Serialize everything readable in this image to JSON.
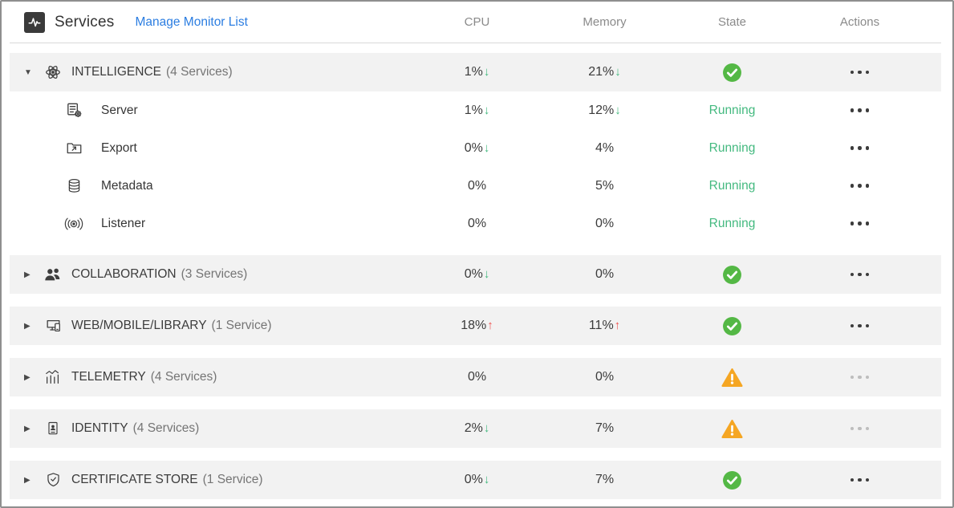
{
  "header": {
    "app_icon": "activity-pulse-icon",
    "title": "Services",
    "manage_link": "Manage Monitor List",
    "columns": [
      "CPU",
      "Memory",
      "State",
      "Actions"
    ]
  },
  "colors": {
    "status_ok_green": "#54b845",
    "trend_down_green": "#43b97f",
    "trend_up_red": "#ef5350",
    "warning_orange": "#f5a623",
    "link_blue": "#2b7de1",
    "group_row_bg": "#f2f2f2"
  },
  "state_labels": {
    "running": "Running"
  },
  "table": {
    "rows": [
      {
        "type": "group",
        "expanded": true,
        "icon": "atom-icon",
        "name": "INTELLIGENCE",
        "count_label": "(4 Services)",
        "cpu": "1%",
        "cpu_trend": "down",
        "memory": "21%",
        "memory_trend": "down",
        "state": "ok",
        "actions_enabled": true
      },
      {
        "type": "service",
        "icon": "server-gear-icon",
        "name": "Server",
        "cpu": "1%",
        "cpu_trend": "down",
        "memory": "12%",
        "memory_trend": "down",
        "state": "running",
        "actions_enabled": true
      },
      {
        "type": "service",
        "icon": "export-folder-icon",
        "name": "Export",
        "cpu": "0%",
        "cpu_trend": "down",
        "memory": "4%",
        "memory_trend": "none",
        "state": "running",
        "actions_enabled": true
      },
      {
        "type": "service",
        "icon": "database-icon",
        "name": "Metadata",
        "cpu": "0%",
        "cpu_trend": "none",
        "memory": "5%",
        "memory_trend": "none",
        "state": "running",
        "actions_enabled": true
      },
      {
        "type": "service",
        "icon": "listener-broadcast-icon",
        "name": "Listener",
        "cpu": "0%",
        "cpu_trend": "none",
        "memory": "0%",
        "memory_trend": "none",
        "state": "running",
        "actions_enabled": true
      },
      {
        "type": "group",
        "expanded": false,
        "icon": "people-icon",
        "name": "COLLABORATION",
        "count_label": "(3 Services)",
        "cpu": "0%",
        "cpu_trend": "down",
        "memory": "0%",
        "memory_trend": "none",
        "state": "ok",
        "actions_enabled": true
      },
      {
        "type": "group",
        "expanded": false,
        "icon": "devices-icon",
        "name": "WEB/MOBILE/LIBRARY",
        "count_label": "(1 Service)",
        "cpu": "18%",
        "cpu_trend": "up",
        "memory": "11%",
        "memory_trend": "up",
        "state": "ok",
        "actions_enabled": true
      },
      {
        "type": "group",
        "expanded": false,
        "icon": "telemetry-chart-icon",
        "name": "TELEMETRY",
        "count_label": "(4 Services)",
        "cpu": "0%",
        "cpu_trend": "none",
        "memory": "0%",
        "memory_trend": "none",
        "state": "warning",
        "actions_enabled": false
      },
      {
        "type": "group",
        "expanded": false,
        "icon": "identity-badge-icon",
        "name": "IDENTITY",
        "count_label": "(4 Services)",
        "cpu": "2%",
        "cpu_trend": "down",
        "memory": "7%",
        "memory_trend": "none",
        "state": "warning",
        "actions_enabled": false
      },
      {
        "type": "group",
        "expanded": false,
        "icon": "certificate-shield-icon",
        "name": "CERTIFICATE STORE",
        "count_label": "(1 Service)",
        "cpu": "0%",
        "cpu_trend": "down",
        "memory": "7%",
        "memory_trend": "none",
        "state": "ok",
        "actions_enabled": true
      }
    ]
  }
}
